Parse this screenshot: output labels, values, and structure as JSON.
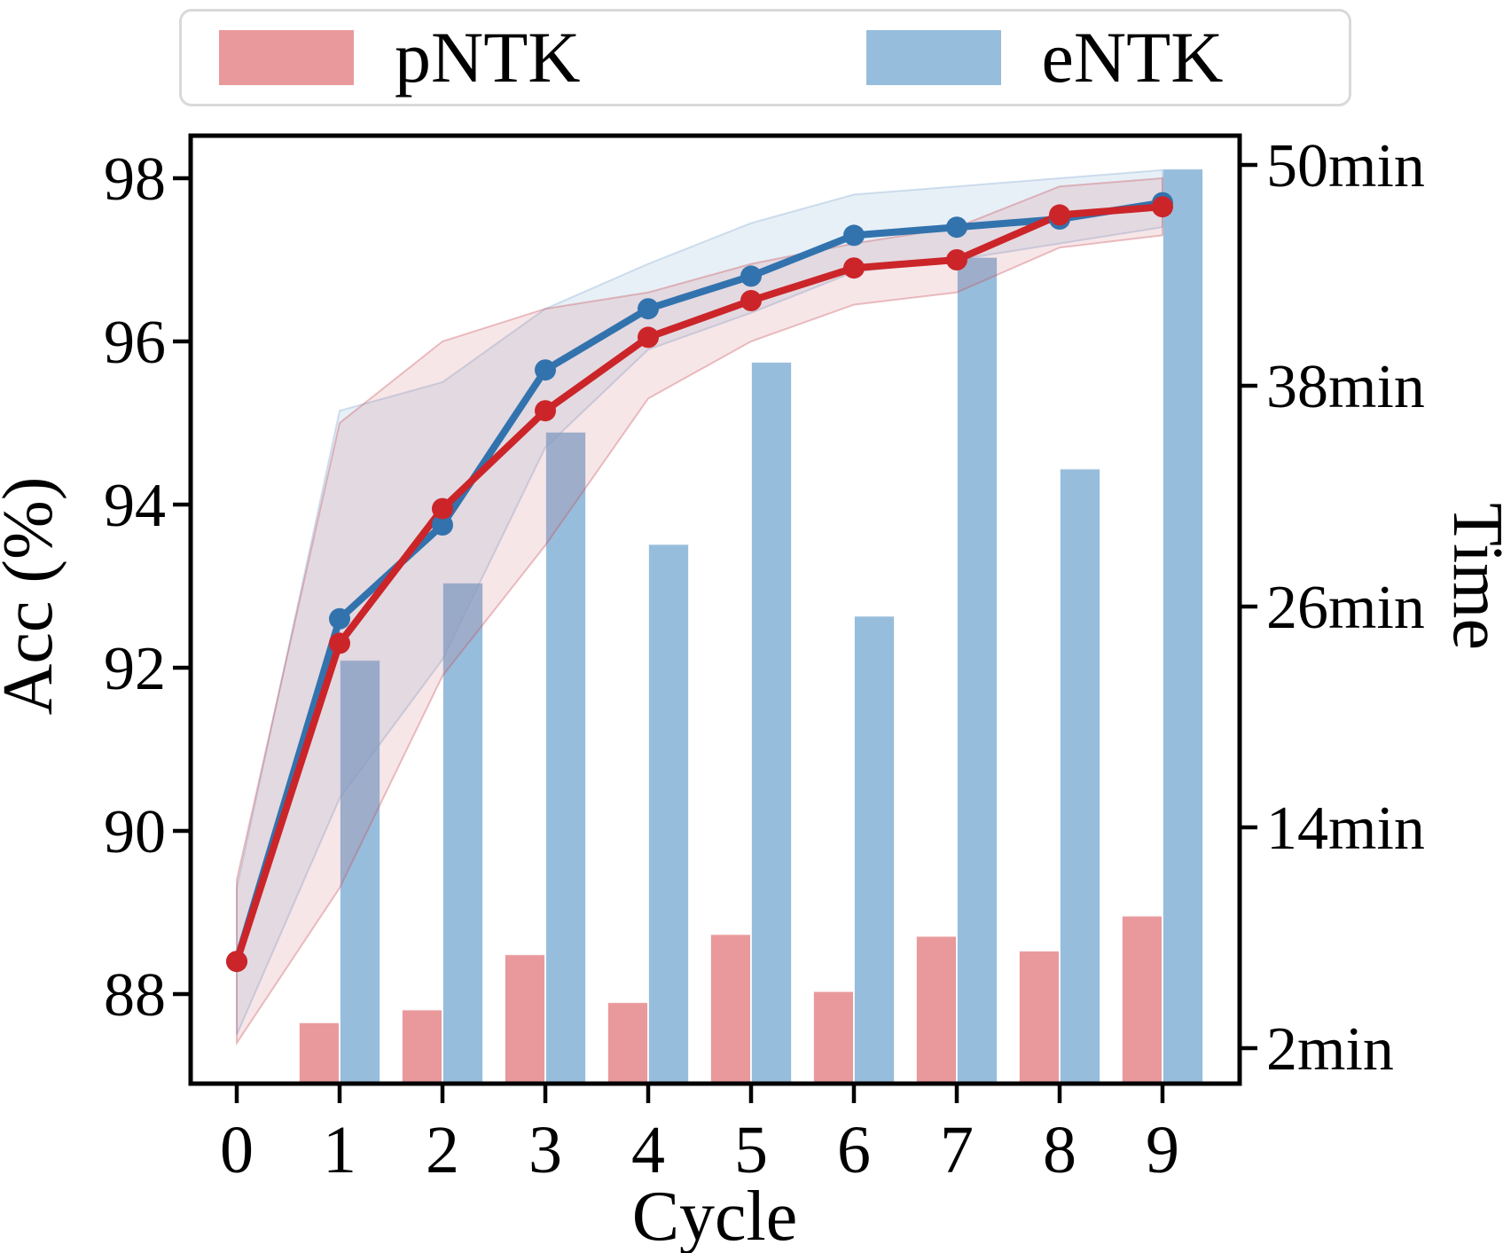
{
  "chart_data": {
    "type": "line+bar",
    "title": "",
    "x_label": "Cycle",
    "x": [
      0,
      1,
      2,
      3,
      4,
      5,
      6,
      7,
      8,
      9
    ],
    "left_axis": {
      "label": "Acc (%)",
      "range": [
        86.9,
        98.5
      ],
      "ticks": [
        98,
        96,
        94,
        92,
        90,
        88
      ]
    },
    "right_axis": {
      "label": "Time",
      "range": [
        0,
        51.6
      ],
      "ticks": [
        {
          "value": 50,
          "label": "50min"
        },
        {
          "value": 38,
          "label": "38min"
        },
        {
          "value": 26,
          "label": "26min"
        },
        {
          "value": 14,
          "label": "14min"
        },
        {
          "value": 2,
          "label": "2min"
        }
      ]
    },
    "legend": {
      "entries": [
        "pNTK",
        "eNTK"
      ],
      "colors": [
        "#e9999b",
        "#97bddc"
      ]
    },
    "series": [
      {
        "name": "eNTK",
        "kind": "line",
        "axis": "acc",
        "color": "#3273ae",
        "band_color": "rgba(130,170,210,0.18)",
        "values": [
          88.4,
          92.6,
          93.75,
          95.65,
          96.4,
          96.8,
          97.3,
          97.4,
          97.5,
          97.7
        ],
        "band_lower": [
          87.5,
          90.4,
          92.1,
          94.7,
          95.9,
          96.35,
          96.85,
          97.0,
          97.2,
          97.4
        ],
        "band_upper": [
          89.3,
          95.15,
          95.5,
          96.4,
          96.95,
          97.45,
          97.8,
          97.9,
          98.0,
          98.1
        ]
      },
      {
        "name": "pNTK",
        "kind": "line",
        "axis": "acc",
        "color": "#cb2529",
        "band_color": "rgba(200,80,90,0.14)",
        "values": [
          88.4,
          92.3,
          93.95,
          95.15,
          96.05,
          96.5,
          96.9,
          97.0,
          97.55,
          97.65
        ],
        "band_lower": [
          87.4,
          89.3,
          91.9,
          93.5,
          95.3,
          96.0,
          96.45,
          96.6,
          97.15,
          97.3
        ],
        "band_upper": [
          89.4,
          95.0,
          96.0,
          96.4,
          96.6,
          96.95,
          97.2,
          97.4,
          97.9,
          98.0
        ]
      },
      {
        "name": "pNTK",
        "kind": "bar",
        "axis": "time",
        "color": "#e9999b",
        "values": [
          null,
          3.4,
          4.1,
          7.1,
          4.5,
          8.2,
          5.1,
          8.1,
          7.3,
          9.2
        ]
      },
      {
        "name": "eNTK",
        "kind": "bar",
        "axis": "time",
        "color": "#97bddc",
        "values": [
          null,
          23.1,
          27.3,
          35.5,
          29.4,
          39.3,
          25.5,
          45.0,
          33.5,
          49.8
        ]
      }
    ]
  }
}
